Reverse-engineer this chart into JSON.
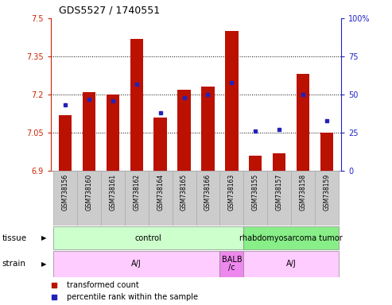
{
  "title": "GDS5527 / 1740551",
  "samples": [
    "GSM738156",
    "GSM738160",
    "GSM738161",
    "GSM738162",
    "GSM738164",
    "GSM738165",
    "GSM738166",
    "GSM738163",
    "GSM738155",
    "GSM738157",
    "GSM738158",
    "GSM738159"
  ],
  "red_values": [
    7.12,
    7.21,
    7.2,
    7.42,
    7.11,
    7.22,
    7.23,
    7.45,
    6.96,
    6.97,
    7.28,
    7.05
  ],
  "blue_values": [
    43,
    47,
    46,
    57,
    38,
    48,
    50,
    58,
    26,
    27,
    50,
    33
  ],
  "ylim_left": [
    6.9,
    7.5
  ],
  "ylim_right": [
    0,
    100
  ],
  "yticks_left": [
    6.9,
    7.05,
    7.2,
    7.35,
    7.5
  ],
  "yticks_right": [
    0,
    25,
    50,
    75,
    100
  ],
  "ytick_labels_left": [
    "6.9",
    "7.05",
    "7.2",
    "7.35",
    "7.5"
  ],
  "ytick_labels_right": [
    "0",
    "25",
    "50",
    "75",
    "100%"
  ],
  "bar_bottom": 6.9,
  "bar_color": "#bb1100",
  "dot_color": "#2222bb",
  "tissue_regions": [
    {
      "text": "control",
      "start": 0,
      "end": 7,
      "color": "#ccffcc"
    },
    {
      "text": "rhabdomyosarcoma tumor",
      "start": 8,
      "end": 11,
      "color": "#88ee88"
    }
  ],
  "strain_regions": [
    {
      "text": "A/J",
      "start": 0,
      "end": 6,
      "color": "#ffccff"
    },
    {
      "text": "BALB\n/c",
      "start": 7,
      "end": 7,
      "color": "#ee88ee"
    },
    {
      "text": "A/J",
      "start": 8,
      "end": 11,
      "color": "#ffccff"
    }
  ],
  "legend_red": "transformed count",
  "legend_blue": "percentile rank within the sample",
  "bg_color": "#ffffff",
  "left_tick_color": "#cc2200",
  "right_tick_color": "#2222cc",
  "bar_width": 0.55,
  "label_bg": "#cccccc",
  "label_edge": "#aaaaaa"
}
